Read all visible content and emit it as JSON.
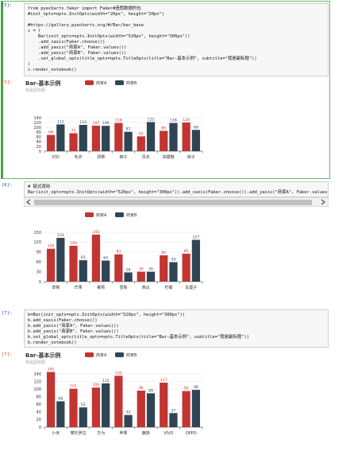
{
  "cells": [
    {
      "prompt": "[5]:",
      "code": "from pyecharts.faker import Faker#造假数据的包\n#init_opts=opts.InitOpts(width=\"20px\", height=\"20px\")\n\n#https://gallery.pyecharts.org/#/Bar/bar_base\nc = (\n    Bar(init_opts=opts.InitOpts(width=\"520px\", height=\"300px\"))\n    .add_xaxis(Faker.choose())\n    .add_yaxis(\"商家A\", Faker.values())\n    .add_yaxis(\"商家B\", Faker.values())\n    .set_global_opts(title_opts=opts.TitleOpts(title=\"Bar-基本示例\", subtitle=\"我是副标题\"))\n)\nc.render_notebook()",
      "output_prompt": "[5]:",
      "chart": {
        "type": "bar",
        "title": "Bar-基本示例",
        "subtitle": "我是副标题",
        "categories": [
          "衬衫",
          "毛衣",
          "领带",
          "裤子",
          "风衣",
          "高跟鞋",
          "袜子"
        ],
        "series": [
          {
            "name": "商家A",
            "color": "#c23531",
            "values": [
              68,
              75,
              107,
              118,
              62,
              85,
              120
            ]
          },
          {
            "name": "商家B",
            "color": "#2f4554",
            "values": [
              112,
              110,
              106,
              81,
              122,
              118,
              89
            ]
          }
        ],
        "ylim": [
          0,
          140
        ],
        "yticks": [
          0,
          20,
          40,
          60,
          80,
          100,
          120,
          140
        ],
        "grid": true
      }
    },
    {
      "prompt": "[6]:",
      "code": "# 链式调用\nBar(init_opts=opts.InitOpts(width=\"520px\", height=\"300px\")).add_xaxis(Faker.choose()).add_yaxis(\"商家A\", Faker.values()).add_yaxis(\"商家B\", Fa",
      "chart": {
        "type": "bar",
        "categories": [
          "草莓",
          "芒果",
          "葡萄",
          "雪梨",
          "西瓜",
          "柠檬",
          "车厘子"
        ],
        "series": [
          {
            "name": "商家A",
            "color": "#c23531",
            "values": [
              100,
              109,
              143,
              83,
              30,
              80,
              85
            ]
          },
          {
            "name": "商家B",
            "color": "#2f4554",
            "values": [
              133,
              65,
              64,
              28,
              30,
              59,
              127
            ]
          }
        ],
        "ylim": [
          0,
          150
        ],
        "yticks": [
          0,
          30,
          60,
          90,
          120,
          150
        ],
        "grid": true
      }
    },
    {
      "prompt": "[7]:",
      "code": "b=Bar(init_opts=opts.InitOpts(width=\"520px\", height=\"300px\"))\nb.add_xaxis(Faker.choose())\nb.add_yaxis(\"商家A\", Faker.values())\nb.add_yaxis(\"商家B\", Faker.values())\nb.set_global_opts(title_opts=opts.TitleOpts(title=\"Bar-基本示例\", subtitle=\"我是副标题\"))\nb.render_notebook()",
      "output_prompt": "[7]:",
      "chart": {
        "type": "bar",
        "title": "Bar-基本示例",
        "subtitle": "我是副标题",
        "categories": [
          "小米",
          "摩托罗拉",
          "华为",
          "苹果",
          "魅族",
          "VIVO",
          "OPPO"
        ],
        "series": [
          {
            "name": "商家A",
            "color": "#c23531",
            "values": [
              145,
              101,
              104,
              135,
              96,
              117,
              95
            ]
          },
          {
            "name": "商家B",
            "color": "#2f4554",
            "values": [
              68,
              52,
              115,
              32,
              89,
              37,
              98
            ]
          }
        ],
        "ylim": [
          0,
          140
        ],
        "yticks": [
          0,
          20,
          40,
          60,
          80,
          100,
          120,
          140
        ],
        "grid": true
      }
    }
  ]
}
